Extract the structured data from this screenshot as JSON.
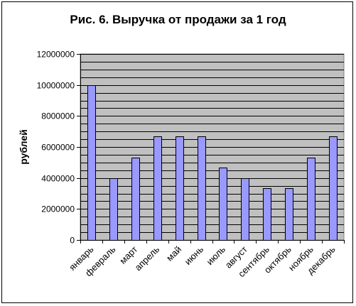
{
  "chart_data": {
    "type": "bar",
    "title": "Рис. 6. Выручка от продажи за 1 год",
    "xlabel": "",
    "ylabel": "рублей",
    "categories": [
      "январь",
      "февраль",
      "март",
      "апрель",
      "май",
      "июнь",
      "июль",
      "август",
      "сентябрь",
      "октябрь",
      "ноябрь",
      "декабрь"
    ],
    "series": [
      {
        "values": [
          10000000,
          4000000,
          5333333,
          6666667,
          6666667,
          6666667,
          4666667,
          4000000,
          3333333,
          3333333,
          5333333,
          6666667
        ]
      }
    ],
    "ylim": [
      0,
      12000000
    ],
    "yticks": [
      "0",
      "2000000",
      "4000000",
      "6000000",
      "8000000",
      "10000000",
      "12000000"
    ],
    "grid": true,
    "legend": "none",
    "colors": {
      "plot_background": "#c0c0c0",
      "bar_fill": "#9999ff",
      "bar_stroke": "#000000",
      "grid": "#000000"
    }
  }
}
